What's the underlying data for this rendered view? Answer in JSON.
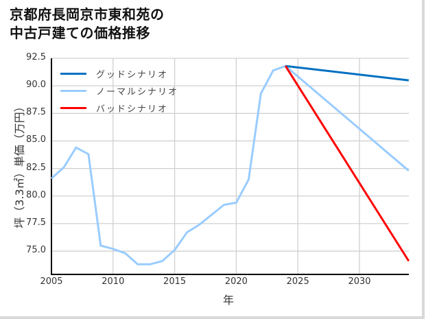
{
  "title_line1": "京都府長岡京市東和苑の",
  "title_line2": "中古戸建ての価格推移",
  "chart_data": {
    "type": "line",
    "title": "京都府長岡京市東和苑の中古戸建ての価格推移",
    "xlabel": "年",
    "ylabel": "坪（3.3㎡）単価（万円）",
    "xlim": [
      2005,
      2034
    ],
    "ylim": [
      72.9,
      92.5
    ],
    "x_ticks": [
      "2005",
      "2010",
      "2015",
      "2020",
      "2025",
      "2030"
    ],
    "y_ticks": [
      "92.5",
      "90.0",
      "87.5",
      "85.0",
      "82.5",
      "80.0",
      "77.5",
      "75.0"
    ],
    "grid": true,
    "legend_position": "upper left",
    "series": [
      {
        "name": "グッドシナリオ",
        "color": "#0070c0",
        "x": [
          2024,
          2034
        ],
        "values": [
          91.8,
          90.5
        ]
      },
      {
        "name": "ノーマルシナリオ",
        "color": "#99ccff",
        "x": [
          2005,
          2006,
          2007,
          2008,
          2009,
          2010,
          2011,
          2012,
          2013,
          2014,
          2015,
          2016,
          2017,
          2018,
          2019,
          2020,
          2021,
          2022,
          2023,
          2024,
          2034
        ],
        "values": [
          81.6,
          82.6,
          84.4,
          83.8,
          75.5,
          75.2,
          74.8,
          73.8,
          73.8,
          74.1,
          75.1,
          76.7,
          77.4,
          78.3,
          79.2,
          79.4,
          81.5,
          89.3,
          91.4,
          91.8,
          82.3
        ]
      },
      {
        "name": "バッドシナリオ",
        "color": "#ff0000",
        "x": [
          2024,
          2034
        ],
        "values": [
          91.8,
          74.1
        ]
      }
    ]
  },
  "legend": [
    {
      "label": "グッドシナリオ",
      "color": "#0070c0"
    },
    {
      "label": "ノーマルシナリオ",
      "color": "#99ccff"
    },
    {
      "label": "バッドシナリオ",
      "color": "#ff0000"
    }
  ]
}
